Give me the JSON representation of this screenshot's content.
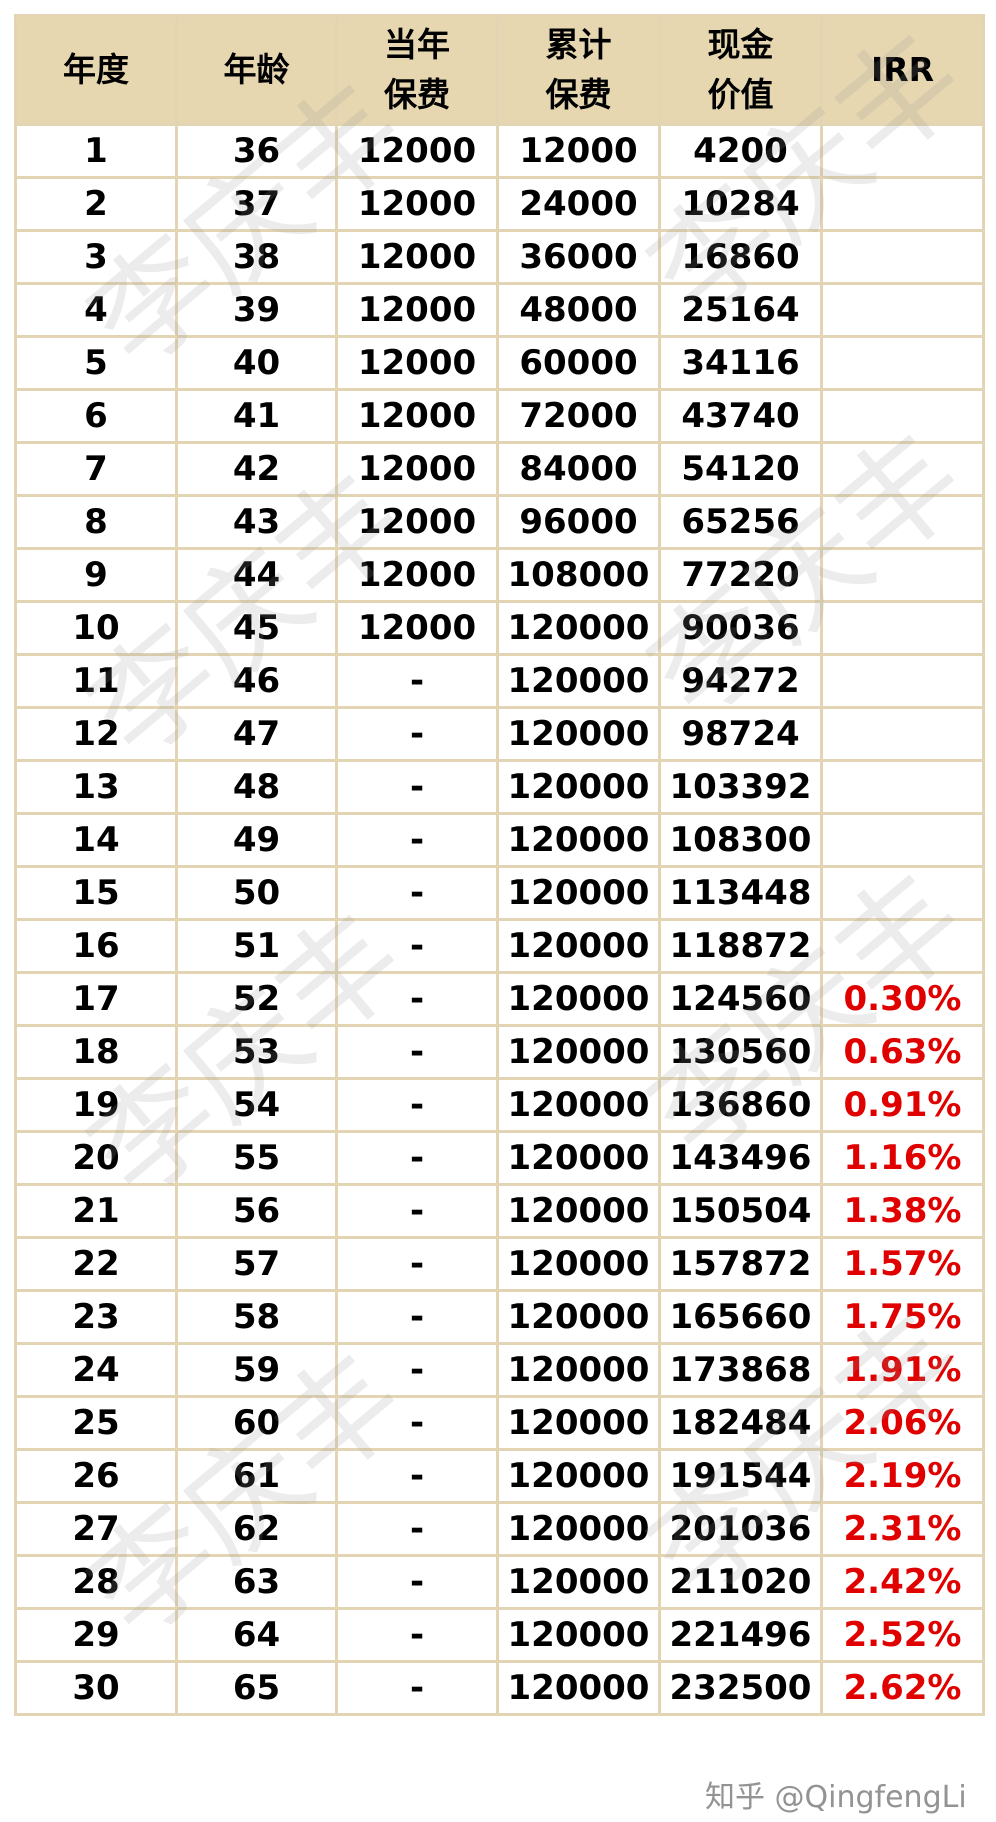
{
  "table": {
    "headers": [
      {
        "line1": "年度",
        "line2": ""
      },
      {
        "line1": "年龄",
        "line2": ""
      },
      {
        "line1": "当年",
        "line2": "保费"
      },
      {
        "line1": "累计",
        "line2": "保费"
      },
      {
        "line1": "现金",
        "line2": "价值"
      },
      {
        "line1": "IRR",
        "line2": ""
      }
    ],
    "rows": [
      [
        "1",
        "36",
        "12000",
        "12000",
        "4200",
        ""
      ],
      [
        "2",
        "37",
        "12000",
        "24000",
        "10284",
        ""
      ],
      [
        "3",
        "38",
        "12000",
        "36000",
        "16860",
        ""
      ],
      [
        "4",
        "39",
        "12000",
        "48000",
        "25164",
        ""
      ],
      [
        "5",
        "40",
        "12000",
        "60000",
        "34116",
        ""
      ],
      [
        "6",
        "41",
        "12000",
        "72000",
        "43740",
        ""
      ],
      [
        "7",
        "42",
        "12000",
        "84000",
        "54120",
        ""
      ],
      [
        "8",
        "43",
        "12000",
        "96000",
        "65256",
        ""
      ],
      [
        "9",
        "44",
        "12000",
        "108000",
        "77220",
        ""
      ],
      [
        "10",
        "45",
        "12000",
        "120000",
        "90036",
        ""
      ],
      [
        "11",
        "46",
        "-",
        "120000",
        "94272",
        ""
      ],
      [
        "12",
        "47",
        "-",
        "120000",
        "98724",
        ""
      ],
      [
        "13",
        "48",
        "-",
        "120000",
        "103392",
        ""
      ],
      [
        "14",
        "49",
        "-",
        "120000",
        "108300",
        ""
      ],
      [
        "15",
        "50",
        "-",
        "120000",
        "113448",
        ""
      ],
      [
        "16",
        "51",
        "-",
        "120000",
        "118872",
        ""
      ],
      [
        "17",
        "52",
        "-",
        "120000",
        "124560",
        "0.30%"
      ],
      [
        "18",
        "53",
        "-",
        "120000",
        "130560",
        "0.63%"
      ],
      [
        "19",
        "54",
        "-",
        "120000",
        "136860",
        "0.91%"
      ],
      [
        "20",
        "55",
        "-",
        "120000",
        "143496",
        "1.16%"
      ],
      [
        "21",
        "56",
        "-",
        "120000",
        "150504",
        "1.38%"
      ],
      [
        "22",
        "57",
        "-",
        "120000",
        "157872",
        "1.57%"
      ],
      [
        "23",
        "58",
        "-",
        "120000",
        "165660",
        "1.75%"
      ],
      [
        "24",
        "59",
        "-",
        "120000",
        "173868",
        "1.91%"
      ],
      [
        "25",
        "60",
        "-",
        "120000",
        "182484",
        "2.06%"
      ],
      [
        "26",
        "61",
        "-",
        "120000",
        "191544",
        "2.19%"
      ],
      [
        "27",
        "62",
        "-",
        "120000",
        "201036",
        "2.31%"
      ],
      [
        "28",
        "63",
        "-",
        "120000",
        "211020",
        "2.42%"
      ],
      [
        "29",
        "64",
        "-",
        "120000",
        "221496",
        "2.52%"
      ],
      [
        "30",
        "65",
        "-",
        "120000",
        "232500",
        "2.62%"
      ]
    ]
  },
  "watermark": "李庆丰",
  "credit": "知乎 @QingfengLi",
  "colors": {
    "header_bg": "#e6d7b1",
    "border": "#e3d5b4",
    "irr_text": "#e00000"
  }
}
